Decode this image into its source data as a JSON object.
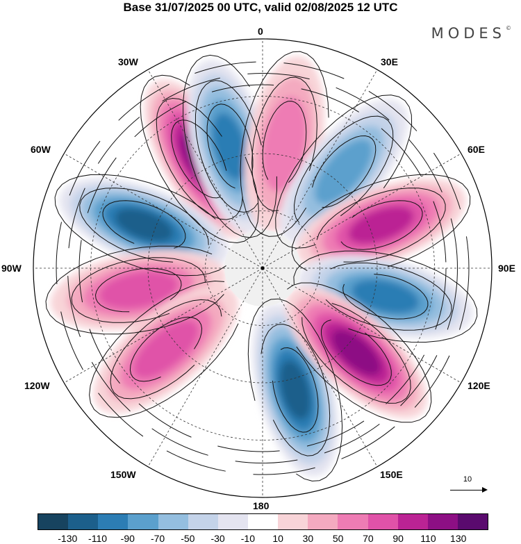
{
  "title": "Base 31/07/2025 00 UTC, valid 02/08/2025 12 UTC",
  "brand": "MODES",
  "brand_mark": "©",
  "longitude_labels": {
    "n0": "0",
    "n30e": "30E",
    "n60e": "60E",
    "n90e": "90E",
    "n120e": "120E",
    "n150e": "150E",
    "n180": "180",
    "n150w": "150W",
    "n120w": "120W",
    "n90w": "90W",
    "n60w": "60W",
    "n30w": "30W"
  },
  "reference_vector": {
    "value": "10"
  },
  "colorbar": {
    "colors": [
      "#17435f",
      "#1c5f8b",
      "#2c7db4",
      "#5ba0cd",
      "#94bedf",
      "#c4d3e9",
      "#e4e4f0",
      "#ffffff",
      "#f8d4d8",
      "#f4aac0",
      "#ee7cb4",
      "#e052a8",
      "#bb2394",
      "#8d0f84",
      "#5a0a6e"
    ],
    "ticks": [
      "-130",
      "-110",
      "-90",
      "-70",
      "-50",
      "-30",
      "-10",
      "10",
      "30",
      "50",
      "70",
      "90",
      "110",
      "130"
    ]
  },
  "map_data": {
    "projection": "polar-stereographic-north",
    "field": "wind anomaly",
    "anomaly_lobes": [
      {
        "lon": 165,
        "value": -120,
        "sign": "negative"
      },
      {
        "lon": -30,
        "value": 125,
        "sign": "positive"
      },
      {
        "lon": -15,
        "value": -110,
        "sign": "negative"
      },
      {
        "lon": 10,
        "value": 60,
        "sign": "positive"
      },
      {
        "lon": 40,
        "value": -95,
        "sign": "negative"
      },
      {
        "lon": 70,
        "value": 110,
        "sign": "positive"
      },
      {
        "lon": 103,
        "value": -115,
        "sign": "negative"
      },
      {
        "lon": 132,
        "value": 125,
        "sign": "positive"
      },
      {
        "lon": -70,
        "value": -125,
        "sign": "negative"
      },
      {
        "lon": -100,
        "value": 80,
        "sign": "positive"
      },
      {
        "lon": -130,
        "value": 90,
        "sign": "positive"
      }
    ]
  }
}
